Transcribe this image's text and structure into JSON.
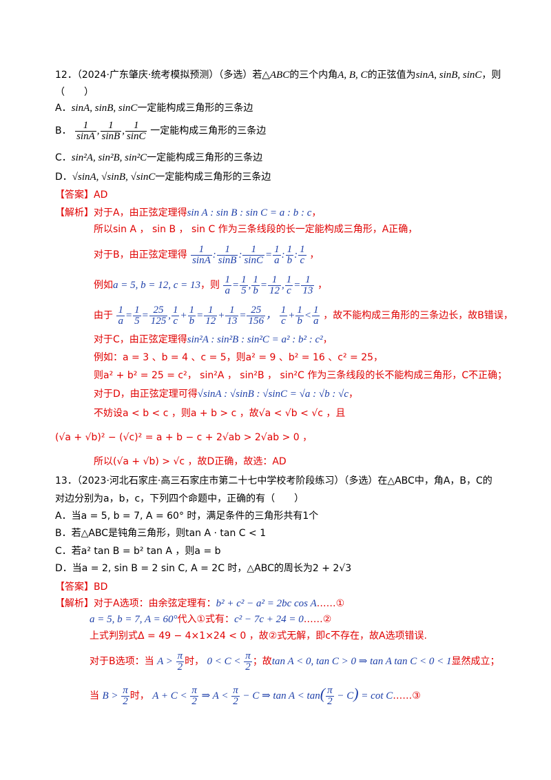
{
  "q12": {
    "stem": "12．（2024·广东肇庆·统考模拟预测）（多选）若",
    "stem_m1": "△ABC",
    "stem_t2": "的三个内角",
    "stem_m2": "A, B, C",
    "stem_t3": "的正弦值为",
    "stem_m3": "sinA, sinB, sinC",
    "stem_t4": "，则",
    "paren": "（　　）",
    "optA_label": "A．",
    "optA_math": "sinA, sinB, sinC",
    "opt_suffix": "一定能构成三角形的三条边",
    "optB_label": "B．",
    "optC_label": "C．",
    "optC_math": "sin²A, sin²B, sin²C",
    "optD_label": "D．",
    "optD_math": "√sinA, √sinB, √sinC",
    "answer_tag": "【答案】",
    "answer": "AD",
    "analysis_tag": "【解析】",
    "a1": "对于A，由正弦定理得",
    "a1m": "sin A : sin B : sin C = a : b : c",
    "a2": "所以sin A ， sin B ， sin C 作为三条线段的长一定能构成三角形，A正确，",
    "a3": "对于B，由正弦定理得",
    "a4": "例如",
    "a4m": "a = 5, b = 12, c = 13",
    "a4t": "，则",
    "a5": "由于",
    "a5t": "，故不能构成三角形的三条边长，故B错误，",
    "a6": "对于C，由正弦定理得",
    "a6m": "sin²A : sin²B : sin²C = a² : b² : c²",
    "a7": "例如：a = 3 、b = 4 、c = 5，则a² = 9 、b² = 16 、c² = 25，",
    "a8": "则a² + b² = 25 = c²， sin²A ， sin²B ， sin²C 作为三条线段的长不能构成三角形，C不正确；",
    "a9": "对于D，由正弦定理可得",
    "a9m": "√sinA : √sinB : √sinC = √a : √b : √c",
    "a10": "不妨设a < b < c ，则a + b > c ，故√a < √b < √c ，且",
    "a11": "(√a + √b)² − (√c)² = a + b − c + 2√ab > 2√ab > 0 ，",
    "a12": "所以(√a + √b) > √c ，故D正确，故选：AD"
  },
  "q13": {
    "stem1": "13．（2023·河北石家庄·高三石家庄市第二十七中学校考阶段练习）（多选）在△ABC中，角A，B，C的",
    "stem2": "对边分别为a，b，c，下列四个命题中，正确的有（　　）",
    "optA": "A．当a = 5, b = 7, A = 60° 时，满足条件的三角形共有1个",
    "optB": "B．若△ABC是钝角三角形，则tan A · tan C < 1",
    "optC": "C．若a² tan B = b² tan A ，则a = b",
    "optD": "D．当a = 2, sin B = 2 sin C, A = 2C 时，△ABC的周长为2 + 2√3",
    "answer_tag": "【答案】",
    "answer": "BD",
    "analysis_tag": "【解析】",
    "s1": "对于A选项：由余弦定理有：",
    "s1m": "b² + c² − a² = 2bc cos A",
    "s1e": "……①",
    "s2m": "a = 5, b = 7, A = 60°",
    "s2t": "代入①式有：",
    "s2m2": "c² − 7c + 24 = 0",
    "s2e": "……②",
    "s3": "上式判别式Δ = 49 − 4×1×24 < 0 ，故②式无解，即c不存在，故A选项错误.",
    "s4": "对于B选项：当",
    "s4t": "时，",
    "s4t2": "；故",
    "s4m": "tan A < 0, tan C > 0 ⇒ tan A tan C < 0 < 1",
    "s4e": "显然成立；",
    "s5": "当",
    "s5t": "时，",
    "s5e": "……③"
  }
}
